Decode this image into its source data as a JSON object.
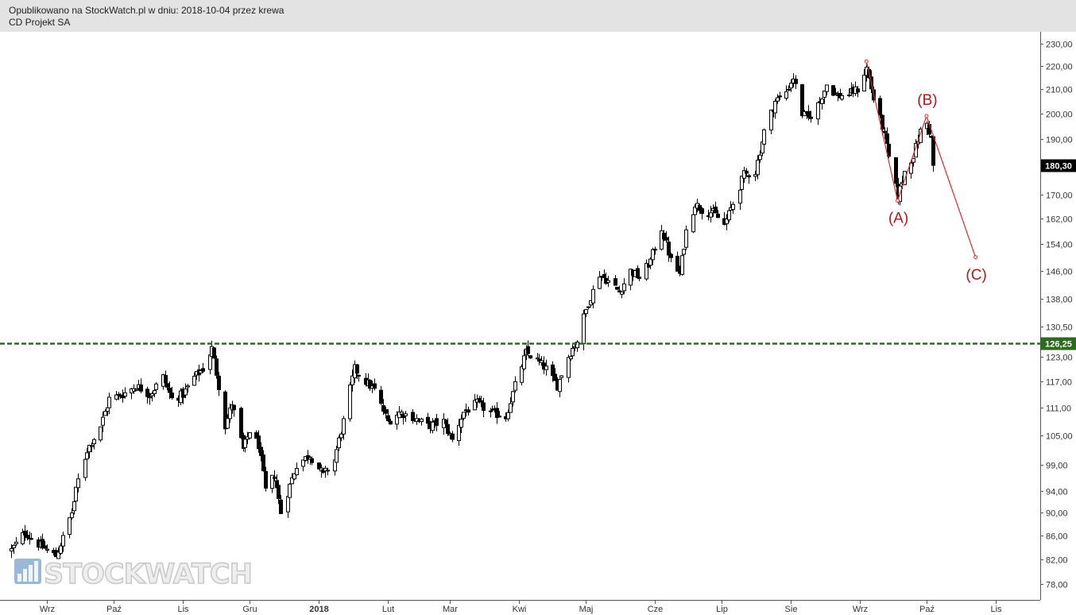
{
  "header": {
    "line1": "Opublikowano na StockWatch.pl w dniu: 2018-10-04 przez krewa",
    "line2": "CD Projekt SA"
  },
  "logo": {
    "text": "STOCKWATCH",
    "icon": "bar-chart-icon"
  },
  "colors": {
    "candle": "#000000",
    "support_line": "#2d6b1e",
    "wave_lines": "#e0272a",
    "wave_labels": "#b5161b",
    "last_price_badge": "#000000",
    "level_badge": "#2d6b1e"
  },
  "chart_data": {
    "type": "candlestick",
    "title": "CD Projekt SA",
    "y_scale": "log",
    "ylim": [
      76,
      233
    ],
    "y_ticks": [
      "230,00",
      "220,00",
      "210,00",
      "200,00",
      "190,00",
      "170,00",
      "162,00",
      "154,00",
      "146,00",
      "138,00",
      "130,50",
      "123,00",
      "117,00",
      "111,00",
      "105,00",
      "99,00",
      "94,00",
      "90,00",
      "86,00",
      "82,00",
      "78,00"
    ],
    "x_ticks": [
      {
        "label": "Wrz",
        "bold": false
      },
      {
        "label": "Paź",
        "bold": false
      },
      {
        "label": "Lis",
        "bold": false
      },
      {
        "label": "Gru",
        "bold": false
      },
      {
        "label": "2018",
        "bold": true
      },
      {
        "label": "Lut",
        "bold": false
      },
      {
        "label": "Mar",
        "bold": false
      },
      {
        "label": "Kwi",
        "bold": false
      },
      {
        "label": "Maj",
        "bold": false
      },
      {
        "label": "Cze",
        "bold": false
      },
      {
        "label": "Lip",
        "bold": false
      },
      {
        "label": "Sie",
        "bold": false
      },
      {
        "label": "Wrz",
        "bold": false
      },
      {
        "label": "Paź",
        "bold": false
      },
      {
        "label": "Lis",
        "bold": false
      }
    ],
    "period": {
      "start": "2017-08-16",
      "end": "2018-10-04"
    },
    "close_anchors": [
      [
        "2017-08-16",
        83.5
      ],
      [
        "2017-08-22",
        86.5
      ],
      [
        "2017-08-28",
        84.5
      ],
      [
        "2017-09-05",
        82.5
      ],
      [
        "2017-09-08",
        85.5
      ],
      [
        "2017-09-12",
        90
      ],
      [
        "2017-09-15",
        96
      ],
      [
        "2017-09-19",
        102
      ],
      [
        "2017-09-25",
        107
      ],
      [
        "2017-09-29",
        113
      ],
      [
        "2017-10-05",
        114
      ],
      [
        "2017-10-11",
        116
      ],
      [
        "2017-10-17",
        114
      ],
      [
        "2017-10-23",
        118
      ],
      [
        "2017-10-27",
        113
      ],
      [
        "2017-11-01",
        114
      ],
      [
        "2017-11-06",
        118
      ],
      [
        "2017-11-10",
        120
      ],
      [
        "2017-11-14",
        125
      ],
      [
        "2017-11-17",
        116
      ],
      [
        "2017-11-20",
        107
      ],
      [
        "2017-11-23",
        112
      ],
      [
        "2017-11-28",
        102
      ],
      [
        "2017-12-01",
        106
      ],
      [
        "2017-12-05",
        103
      ],
      [
        "2017-12-08",
        94
      ],
      [
        "2017-12-12",
        97
      ],
      [
        "2017-12-15",
        90
      ],
      [
        "2017-12-19",
        95
      ],
      [
        "2017-12-22",
        99
      ],
      [
        "2017-12-28",
        101
      ],
      [
        "2018-01-03",
        97
      ],
      [
        "2018-01-08",
        100
      ],
      [
        "2018-01-12",
        108
      ],
      [
        "2018-01-17",
        120
      ],
      [
        "2018-01-22",
        117
      ],
      [
        "2018-01-26",
        115
      ],
      [
        "2018-02-01",
        108
      ],
      [
        "2018-02-06",
        110
      ],
      [
        "2018-02-12",
        109
      ],
      [
        "2018-02-19",
        107
      ],
      [
        "2018-02-26",
        108
      ],
      [
        "2018-03-02",
        104
      ],
      [
        "2018-03-07",
        110
      ],
      [
        "2018-03-13",
        112
      ],
      [
        "2018-03-19",
        110
      ],
      [
        "2018-03-26",
        109
      ],
      [
        "2018-03-30",
        116
      ],
      [
        "2018-04-04",
        124
      ],
      [
        "2018-04-09",
        122
      ],
      [
        "2018-04-13",
        120
      ],
      [
        "2018-04-18",
        116
      ],
      [
        "2018-04-23",
        123
      ],
      [
        "2018-04-27",
        127
      ],
      [
        "2018-05-02",
        137
      ],
      [
        "2018-05-07",
        145
      ],
      [
        "2018-05-11",
        143
      ],
      [
        "2018-05-16",
        140
      ],
      [
        "2018-05-21",
        146
      ],
      [
        "2018-05-25",
        144
      ],
      [
        "2018-05-30",
        149
      ],
      [
        "2018-06-04",
        159
      ],
      [
        "2018-06-08",
        149
      ],
      [
        "2018-06-12",
        145
      ],
      [
        "2018-06-15",
        158
      ],
      [
        "2018-06-19",
        167
      ],
      [
        "2018-06-22",
        165
      ],
      [
        "2018-06-27",
        164
      ],
      [
        "2018-07-02",
        160
      ],
      [
        "2018-07-06",
        167
      ],
      [
        "2018-07-11",
        177
      ],
      [
        "2018-07-16",
        178
      ],
      [
        "2018-07-20",
        193
      ],
      [
        "2018-07-25",
        205
      ],
      [
        "2018-07-30",
        209
      ],
      [
        "2018-08-02",
        215
      ],
      [
        "2018-08-06",
        200
      ],
      [
        "2018-08-09",
        198
      ],
      [
        "2018-08-14",
        205
      ],
      [
        "2018-08-17",
        212
      ],
      [
        "2018-08-22",
        207
      ],
      [
        "2018-08-27",
        208
      ],
      [
        "2018-08-31",
        210
      ],
      [
        "2018-09-04",
        219
      ],
      [
        "2018-09-07",
        206
      ],
      [
        "2018-09-11",
        195
      ],
      [
        "2018-09-14",
        183
      ],
      [
        "2018-09-18",
        169
      ],
      [
        "2018-09-21",
        178
      ],
      [
        "2018-09-25",
        184
      ],
      [
        "2018-09-28",
        193
      ],
      [
        "2018-10-01",
        196
      ],
      [
        "2018-10-03",
        190
      ],
      [
        "2018-10-04",
        180.3
      ]
    ],
    "support_level": 126.25,
    "support_label": "126,25",
    "last_price": 180.3,
    "last_price_label": "180,30",
    "elliott_wave": [
      {
        "date": "2018-09-04",
        "value": 222,
        "label": ""
      },
      {
        "date": "2018-09-18",
        "value": 168,
        "label": "(A)"
      },
      {
        "date": "2018-10-01",
        "value": 199,
        "label": "(B)"
      },
      {
        "date": "2018-10-23",
        "value": 150,
        "label": "(C)"
      }
    ]
  }
}
